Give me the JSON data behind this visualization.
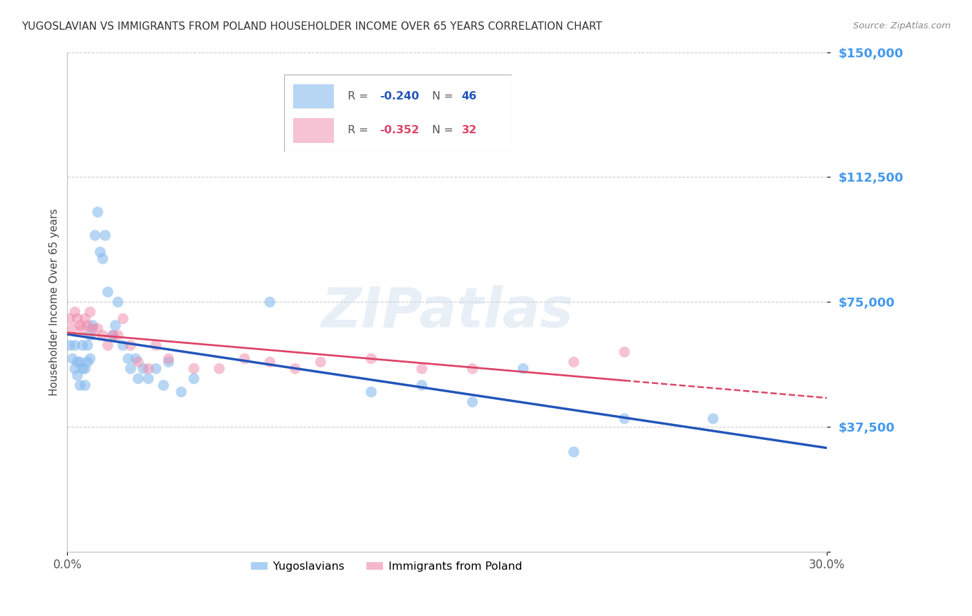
{
  "title": "YUGOSLAVIAN VS IMMIGRANTS FROM POLAND HOUSEHOLDER INCOME OVER 65 YEARS CORRELATION CHART",
  "source": "Source: ZipAtlas.com",
  "ylabel": "Householder Income Over 65 years",
  "xlim": [
    0.0,
    0.3
  ],
  "ylim": [
    0,
    150000
  ],
  "yticks": [
    0,
    37500,
    75000,
    112500,
    150000
  ],
  "ytick_labels": [
    "",
    "$37,500",
    "$75,000",
    "$112,500",
    "$150,000"
  ],
  "xtick_labels": [
    "0.0%",
    "30.0%"
  ],
  "background_color": "#ffffff",
  "grid_color": "#cccccc",
  "watermark": "ZIPatlas",
  "legend_label_blue": "Yugoslavians",
  "legend_label_pink": "Immigrants from Poland",
  "blue_color": "#88bbee",
  "pink_color": "#ee88aa",
  "trendline_blue_color": "#2255bb",
  "trendline_pink_color": "#dd4466",
  "blue_x": [
    0.001,
    0.002,
    0.003,
    0.003,
    0.004,
    0.004,
    0.005,
    0.005,
    0.006,
    0.006,
    0.007,
    0.007,
    0.008,
    0.008,
    0.009,
    0.009,
    0.01,
    0.011,
    0.012,
    0.013,
    0.014,
    0.015,
    0.016,
    0.018,
    0.019,
    0.02,
    0.022,
    0.024,
    0.025,
    0.027,
    0.028,
    0.03,
    0.032,
    0.035,
    0.038,
    0.04,
    0.045,
    0.05,
    0.08,
    0.12,
    0.14,
    0.16,
    0.18,
    0.2,
    0.22,
    0.255
  ],
  "blue_y": [
    62000,
    58000,
    62000,
    55000,
    57000,
    53000,
    57000,
    50000,
    62000,
    55000,
    55000,
    50000,
    62000,
    57000,
    65000,
    58000,
    68000,
    95000,
    102000,
    90000,
    88000,
    95000,
    78000,
    65000,
    68000,
    75000,
    62000,
    58000,
    55000,
    58000,
    52000,
    55000,
    52000,
    55000,
    50000,
    57000,
    48000,
    52000,
    75000,
    48000,
    50000,
    45000,
    55000,
    30000,
    40000,
    40000
  ],
  "pink_x": [
    0.001,
    0.002,
    0.003,
    0.004,
    0.005,
    0.006,
    0.007,
    0.008,
    0.009,
    0.01,
    0.012,
    0.014,
    0.016,
    0.018,
    0.02,
    0.022,
    0.025,
    0.028,
    0.032,
    0.035,
    0.04,
    0.05,
    0.06,
    0.07,
    0.08,
    0.09,
    0.1,
    0.12,
    0.14,
    0.16,
    0.2,
    0.22
  ],
  "pink_y": [
    70000,
    67000,
    72000,
    70000,
    68000,
    67000,
    70000,
    68000,
    72000,
    67000,
    67000,
    65000,
    62000,
    65000,
    65000,
    70000,
    62000,
    57000,
    55000,
    62000,
    58000,
    55000,
    55000,
    58000,
    57000,
    55000,
    57000,
    58000,
    55000,
    55000,
    57000,
    60000
  ]
}
